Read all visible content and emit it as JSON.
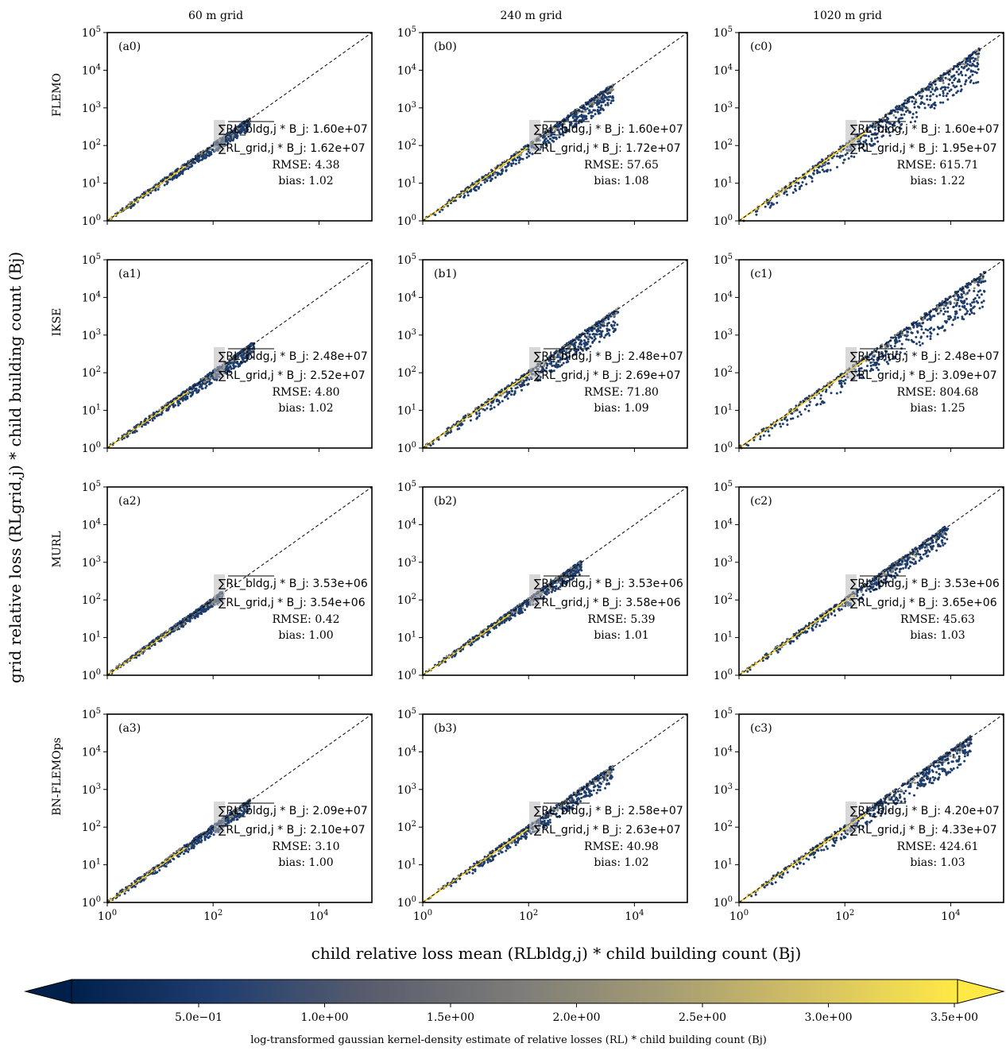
{
  "figure": {
    "column_titles": [
      "60 m grid",
      "240 m grid",
      "1020 m grid"
    ],
    "row_labels": [
      "FLEMO",
      "IKSE",
      "MURL",
      "BN-FLEMOps"
    ],
    "y_axis_label": "grid relative loss (RLgrid,j) * child building count (Bj)",
    "x_axis_label": "child relative loss mean (RLbldg,j) * child building count (Bj)",
    "colorbar": {
      "ticks": [
        "5.0e−01",
        "1.0e+00",
        "1.5e+00",
        "2.0e+00",
        "2.5e+00",
        "3.0e+00",
        "3.5e+00"
      ],
      "label": "log-transformed gaussian kernel-density estimate of relative losses (RL) * child building count (Bj)",
      "colors": [
        "#00204c",
        "#213e6f",
        "#575c6d",
        "#7c7b78",
        "#a59c74",
        "#d3c064",
        "#ffe945"
      ]
    },
    "stat_labels": {
      "sum_bldg": "RL_bldg,j * B_j",
      "sum_grid": "RL_grid,j * B_j",
      "rmse": "RMSE",
      "bias": "bias"
    },
    "axis_colors": {
      "identity_line": "#000000",
      "fit_line": "#f3d23a",
      "scatter": "#1f3d6b"
    }
  },
  "chart_data": {
    "type": "scatter",
    "x_scale": "log",
    "y_scale": "log",
    "xlim": [
      1,
      100000
    ],
    "ylim": [
      1,
      100000
    ],
    "x_tick_labels": [
      "10^0",
      "10^2",
      "10^4"
    ],
    "y_tick_labels": [
      "10^0",
      "10^1",
      "10^2",
      "10^3",
      "10^4",
      "10^5"
    ],
    "reference_line": "y = x",
    "panels": [
      {
        "id": "(a0)",
        "row": "FLEMO",
        "col": "60 m grid",
        "sum_bldg": "1.60e+07",
        "sum_grid": "1.62e+07",
        "rmse": "4.38",
        "bias": "1.02",
        "x_max": 500,
        "spread": 0.25
      },
      {
        "id": "(b0)",
        "row": "FLEMO",
        "col": "240 m grid",
        "sum_bldg": "1.60e+07",
        "sum_grid": "1.72e+07",
        "rmse": "57.65",
        "bias": "1.08",
        "x_max": 4000,
        "spread": 0.35
      },
      {
        "id": "(c0)",
        "row": "FLEMO",
        "col": "1020 m grid",
        "sum_bldg": "1.60e+07",
        "sum_grid": "1.95e+07",
        "rmse": "615.71",
        "bias": "1.22",
        "x_max": 35000,
        "spread": 0.5
      },
      {
        "id": "(a1)",
        "row": "IKSE",
        "col": "60 m grid",
        "sum_bldg": "2.48e+07",
        "sum_grid": "2.52e+07",
        "rmse": "4.80",
        "bias": "1.02",
        "x_max": 600,
        "spread": 0.3
      },
      {
        "id": "(b1)",
        "row": "IKSE",
        "col": "240 m grid",
        "sum_bldg": "2.48e+07",
        "sum_grid": "2.69e+07",
        "rmse": "71.80",
        "bias": "1.09",
        "x_max": 5000,
        "spread": 0.4
      },
      {
        "id": "(c1)",
        "row": "IKSE",
        "col": "1020 m grid",
        "sum_bldg": "2.48e+07",
        "sum_grid": "3.09e+07",
        "rmse": "804.68",
        "bias": "1.25",
        "x_max": 45000,
        "spread": 0.5
      },
      {
        "id": "(a2)",
        "row": "MURL",
        "col": "60 m grid",
        "sum_bldg": "3.53e+06",
        "sum_grid": "3.54e+06",
        "rmse": "0.42",
        "bias": "1.00",
        "x_max": 150,
        "spread": 0.2
      },
      {
        "id": "(b2)",
        "row": "MURL",
        "col": "240 m grid",
        "sum_bldg": "3.53e+06",
        "sum_grid": "3.58e+06",
        "rmse": "5.39",
        "bias": "1.01",
        "x_max": 1000,
        "spread": 0.25
      },
      {
        "id": "(c2)",
        "row": "MURL",
        "col": "1020 m grid",
        "sum_bldg": "3.53e+06",
        "sum_grid": "3.65e+06",
        "rmse": "45.63",
        "bias": "1.03",
        "x_max": 9000,
        "spread": 0.3
      },
      {
        "id": "(a3)",
        "row": "BN-FLEMOps",
        "col": "60 m grid",
        "sum_bldg": "2.09e+07",
        "sum_grid": "2.10e+07",
        "rmse": "3.10",
        "bias": "1.00",
        "x_max": 500,
        "spread": 0.25
      },
      {
        "id": "(b3)",
        "row": "BN-FLEMOps",
        "col": "240 m grid",
        "sum_bldg": "2.58e+07",
        "sum_grid": "2.63e+07",
        "rmse": "40.98",
        "bias": "1.02",
        "x_max": 4000,
        "spread": 0.3
      },
      {
        "id": "(c3)",
        "row": "BN-FLEMOps",
        "col": "1020 m grid",
        "sum_bldg": "4.20e+07",
        "sum_grid": "4.33e+07",
        "rmse": "424.61",
        "bias": "1.03",
        "x_max": 25000,
        "spread": 0.35
      }
    ]
  }
}
